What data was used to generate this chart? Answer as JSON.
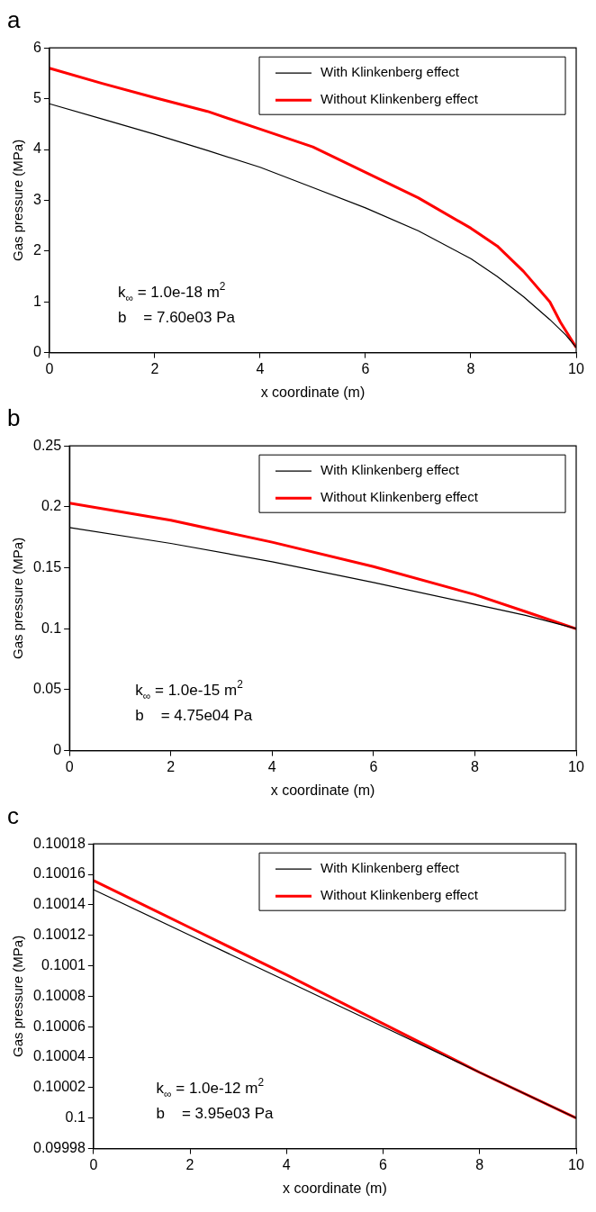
{
  "chart_data": [
    {
      "type": "line",
      "title": "a",
      "xlabel": "x coordinate (m)",
      "ylabel": "Gas pressure (MPa)",
      "x": [
        0,
        1,
        2,
        3,
        4,
        5,
        6,
        7,
        8,
        8.5,
        9,
        9.5,
        9.7,
        10
      ],
      "series": [
        {
          "name": "With Klinkenberg effect",
          "color": "#000000",
          "x": [
            0,
            1,
            2,
            3,
            4,
            5,
            6,
            7,
            8,
            8.5,
            9,
            9.5,
            9.8,
            10
          ],
          "values": [
            4.9,
            4.6,
            4.3,
            3.98,
            3.65,
            3.25,
            2.85,
            2.4,
            1.85,
            1.5,
            1.1,
            0.65,
            0.35,
            0.1
          ]
        },
        {
          "name": "Without Klinkenberg effect",
          "color": "#ff0000",
          "values": [
            5.6,
            5.3,
            5.02,
            4.75,
            4.4,
            4.05,
            3.55,
            3.05,
            2.45,
            2.1,
            1.6,
            1.0,
            0.6,
            0.1
          ]
        }
      ],
      "xlim": [
        0,
        10
      ],
      "xticks": [
        0,
        2,
        4,
        6,
        8,
        10
      ],
      "ylim": [
        0,
        6
      ],
      "yticks": [
        0,
        1,
        2,
        3,
        4,
        5,
        6
      ],
      "legend": "top right",
      "marker": "none",
      "annotations": [
        "k$_{∞}$ = 1.0e-18 m$^{2}$",
        "b    = 7.60e03 Pa"
      ]
    },
    {
      "type": "line",
      "title": "b",
      "xlabel": "x coordinate (m)",
      "ylabel": "Gas pressure (MPa)",
      "x": [
        0,
        2,
        4,
        6,
        8,
        9,
        10
      ],
      "series": [
        {
          "name": "With Klinkenberg effect",
          "color": "#000000",
          "values": [
            0.183,
            0.17,
            0.155,
            0.138,
            0.12,
            0.111,
            0.1
          ]
        },
        {
          "name": "Without Klinkenberg effect",
          "color": "#ff0000",
          "values": [
            0.203,
            0.189,
            0.171,
            0.151,
            0.128,
            0.114,
            0.1
          ]
        }
      ],
      "xlim": [
        0,
        10
      ],
      "xticks": [
        0,
        2,
        4,
        6,
        8,
        10
      ],
      "ylim": [
        0,
        0.25
      ],
      "yticks": [
        0,
        0.05,
        0.1,
        0.15,
        0.2,
        0.25
      ],
      "legend": "top right",
      "marker": "none",
      "annotations": [
        "k$_{∞}$ = 1.0e-15 m$^{2}$",
        "b    = 4.75e04 Pa"
      ]
    },
    {
      "type": "line",
      "title": "c",
      "xlabel": "x coordinate (m)",
      "ylabel": "Gas pressure (MPa)",
      "x": [
        0,
        2,
        4,
        6,
        8,
        10
      ],
      "series": [
        {
          "name": "With Klinkenberg effect",
          "color": "#000000",
          "values": [
            0.10015,
            0.10012,
            0.10009,
            0.10006,
            0.10003,
            0.1
          ]
        },
        {
          "name": "Without Klinkenberg effect",
          "color": "#ff0000",
          "values": [
            0.100156,
            0.100125,
            0.100094,
            0.100062,
            0.10003,
            0.1
          ]
        }
      ],
      "xlim": [
        0,
        10
      ],
      "xticks": [
        0,
        2,
        4,
        6,
        8,
        10
      ],
      "ylim": [
        0.09998,
        0.10018
      ],
      "yticks": [
        0.09998,
        0.1,
        0.10002,
        0.10004,
        0.10006,
        0.10008,
        0.1001,
        0.10012,
        0.10014,
        0.10016,
        0.10018
      ],
      "legend": "top right",
      "marker": "none",
      "annotations": [
        "k$_{∞}$ = 1.0e-12 m$^{2}$",
        "b    = 3.95e03 Pa"
      ]
    }
  ]
}
